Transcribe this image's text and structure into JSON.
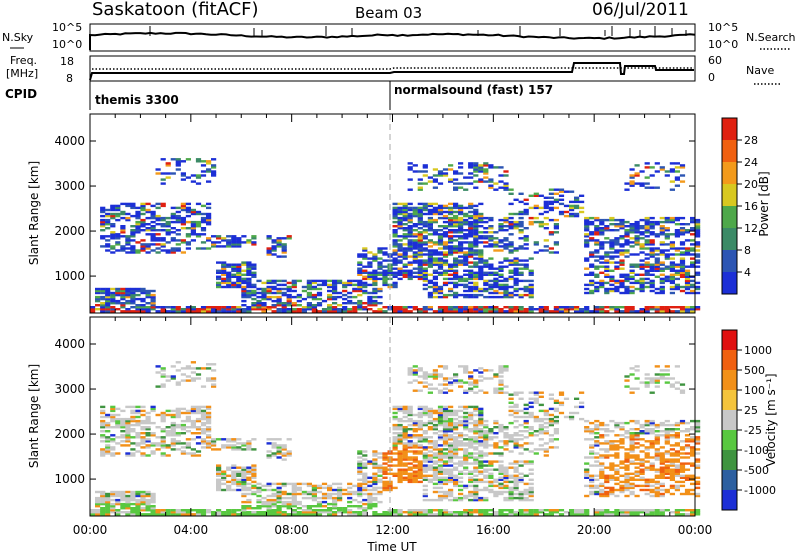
{
  "header": {
    "title": "Saskatoon (fitACF)",
    "beam": "Beam 03",
    "date": "06/Jul/2011"
  },
  "nsky_panel": {
    "left_label": "N.Sky",
    "right_label": "N.Search",
    "left_ticks": [
      "10^5",
      "10^0"
    ],
    "right_ticks": [
      "10^5",
      "10^0"
    ]
  },
  "freq_panel": {
    "left_label_1": "Freq.",
    "left_label_2": "[MHz]",
    "right_label": "Nave",
    "left_ticks": [
      "18",
      "8"
    ],
    "right_ticks": [
      "60",
      "0"
    ]
  },
  "cpid_panel": {
    "label": "CPID",
    "segments": [
      {
        "name": "themis 3300",
        "start_hour": 0.0
      },
      {
        "name": "normalsound (fast) 157",
        "start_hour": 12.0
      }
    ]
  },
  "chart_data": [
    {
      "type": "heatmap",
      "panel": "power",
      "xlabel": "",
      "ylabel": "Slant Range [km]",
      "x_range_hours": [
        0,
        24
      ],
      "ylim": [
        180,
        4600
      ],
      "y_ticks": [
        "1000",
        "2000",
        "3000",
        "4000"
      ],
      "x_ticks": [],
      "colorbar": {
        "label": "Power [dB]",
        "ticks": [
          "4",
          "8",
          "12",
          "16",
          "20",
          "24",
          "28"
        ],
        "colors": [
          "#1c2fd6",
          "#2c55b3",
          "#3b8a66",
          "#4ea84a",
          "#d8c820",
          "#f39a1b",
          "#f06010",
          "#e02010"
        ]
      }
    },
    {
      "type": "heatmap",
      "panel": "velocity",
      "xlabel": "Time UT",
      "ylabel": "Slant Range [km]",
      "x_range_hours": [
        0,
        24
      ],
      "ylim": [
        180,
        4600
      ],
      "y_ticks": [
        "1000",
        "2000",
        "3000",
        "4000"
      ],
      "x_ticks": [
        "00:00",
        "04:00",
        "08:00",
        "12:00",
        "16:00",
        "20:00",
        "00:00"
      ],
      "colorbar": {
        "label": "Velocity [m s⁻¹]",
        "ticks": [
          "1000",
          "500",
          "100",
          "25",
          "-25",
          "-100",
          "-500",
          "-1000"
        ],
        "colors": [
          "#1c2fd6",
          "#2c5fa0",
          "#3f9440",
          "#58c840",
          "#c8c8c8",
          "#f4c43c",
          "#f29018",
          "#f06010",
          "#e01010"
        ]
      }
    }
  ]
}
